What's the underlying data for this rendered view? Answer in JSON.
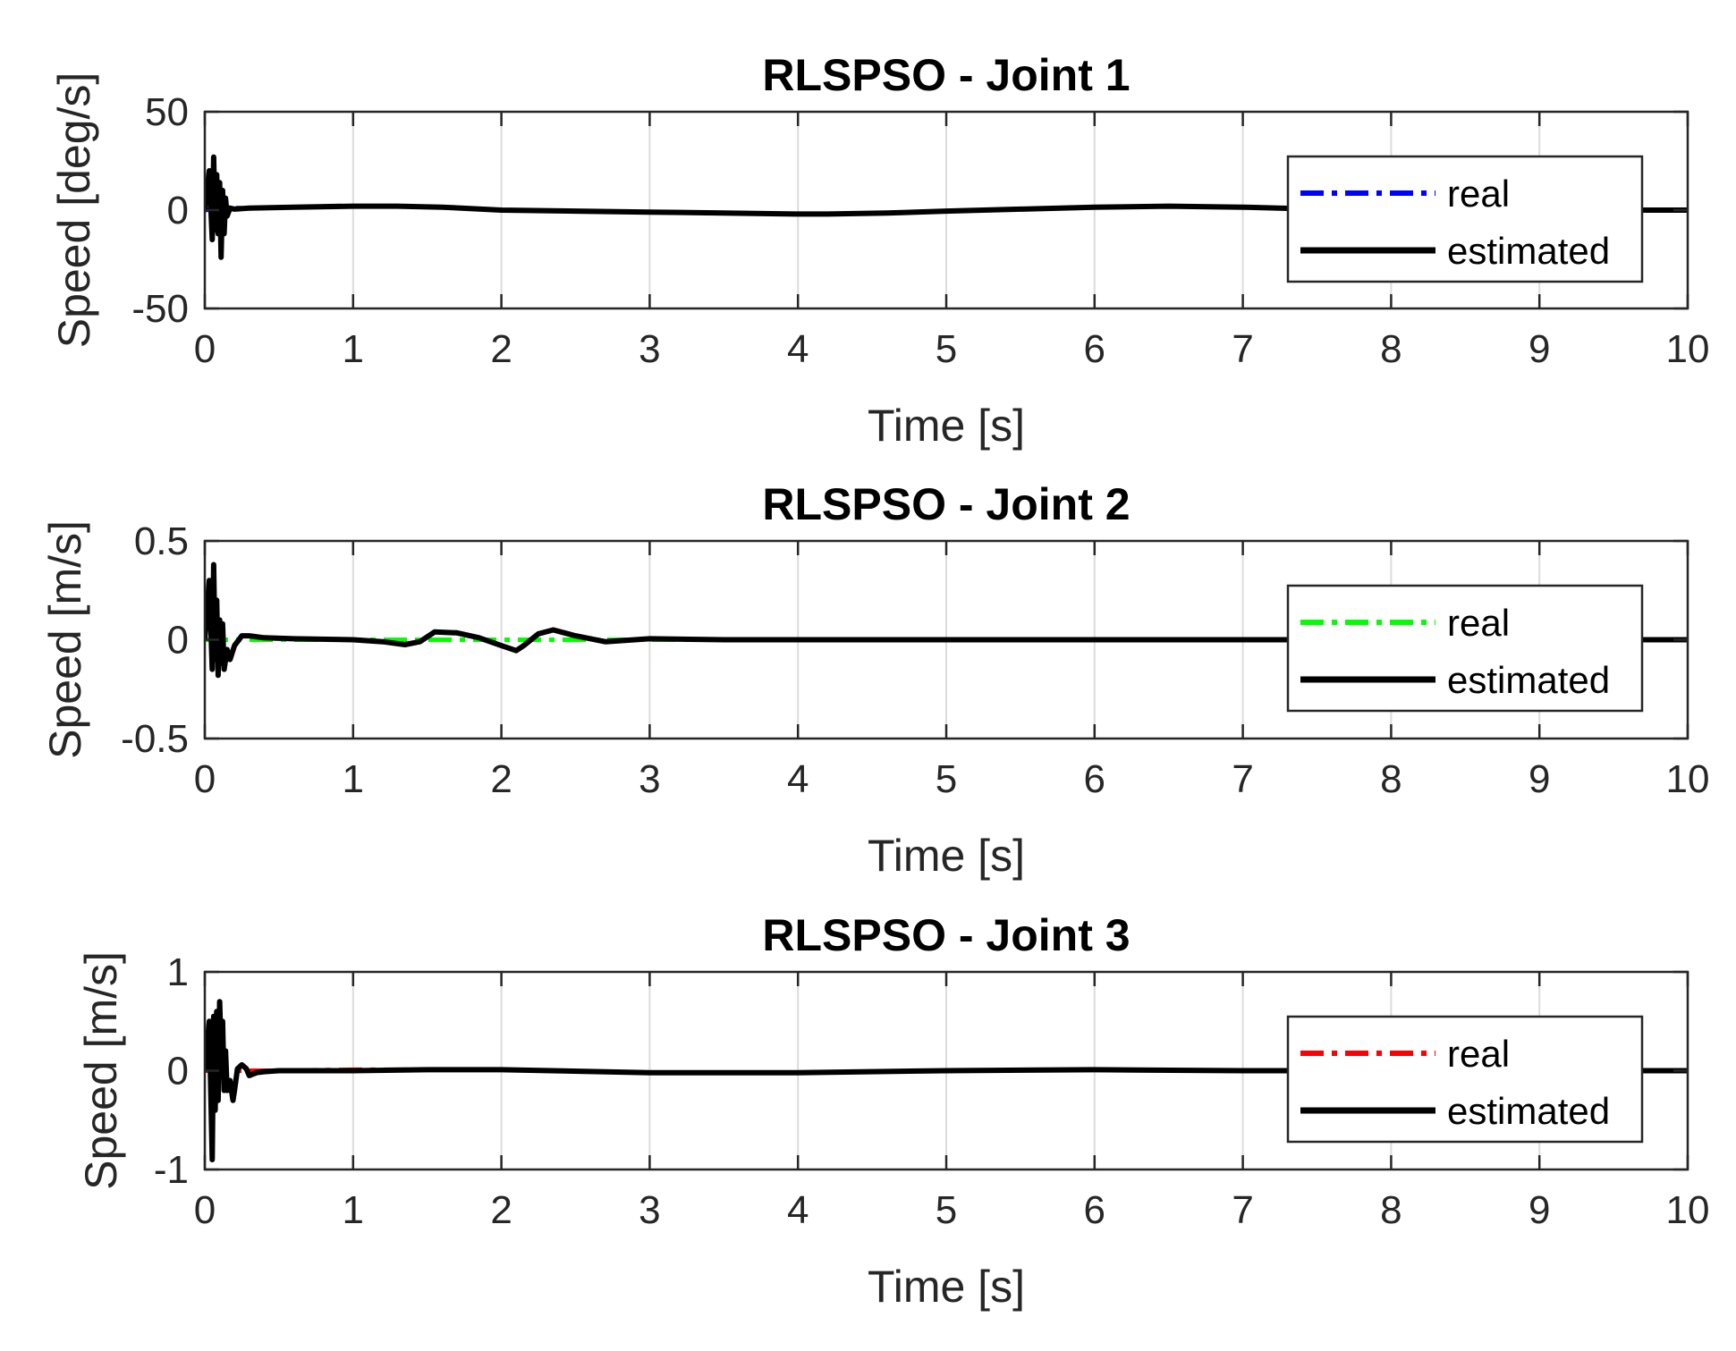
{
  "chart_data": [
    {
      "type": "line",
      "title": "RLSPSO - Joint 1",
      "xlabel": "Time [s]",
      "ylabel": "Speed [deg/s]",
      "xlim": [
        0,
        10
      ],
      "ylim": [
        -50,
        50
      ],
      "xticks": [
        "0",
        "1",
        "2",
        "3",
        "4",
        "5",
        "6",
        "7",
        "8",
        "9",
        "10"
      ],
      "yticks": [
        "-50",
        "0",
        "50"
      ],
      "grid": "x",
      "legend_position": "right",
      "series": [
        {
          "name": "real",
          "color": "#0000ff",
          "style": "dash-dot",
          "x": [
            0,
            0.05,
            0.1,
            0.15,
            0.3,
            0.6,
            1.0,
            1.3,
            1.6,
            2.0,
            2.5,
            3.0,
            3.5,
            4.0,
            4.2,
            4.6,
            5.0,
            5.5,
            6.0,
            6.5,
            7.0,
            7.5,
            8.0,
            8.5,
            9.0,
            9.5,
            10.0
          ],
          "y": [
            0,
            0.5,
            1,
            1,
            1,
            1.5,
            2,
            2,
            1.5,
            0,
            -0.5,
            -1,
            -1.5,
            -2,
            -2,
            -1.5,
            -0.5,
            0.5,
            1.5,
            2,
            1.5,
            0.5,
            0,
            0,
            0,
            0,
            0
          ]
        },
        {
          "name": "estimated",
          "color": "#000000",
          "style": "solid",
          "x": [
            0,
            0.03,
            0.05,
            0.06,
            0.07,
            0.08,
            0.09,
            0.1,
            0.11,
            0.12,
            0.13,
            0.14,
            0.15,
            0.17,
            0.2,
            0.3,
            0.6,
            1.0,
            1.3,
            1.6,
            2.0,
            2.5,
            3.0,
            3.5,
            4.0,
            4.2,
            4.6,
            5.0,
            5.5,
            6.0,
            6.5,
            7.0,
            7.5,
            8.0,
            8.5,
            9.0,
            9.5,
            10.0
          ],
          "y": [
            0,
            20,
            -15,
            27,
            -10,
            18,
            -12,
            14,
            -24,
            10,
            -12,
            6,
            -3,
            1,
            0.5,
            1,
            1.5,
            2,
            2,
            1.5,
            0,
            -0.5,
            -1,
            -1.5,
            -2,
            -2,
            -1.5,
            -0.5,
            0.5,
            1.5,
            2,
            1.5,
            0.5,
            0,
            0,
            0,
            0,
            0
          ]
        }
      ]
    },
    {
      "type": "line",
      "title": "RLSPSO - Joint 2",
      "xlabel": "Time [s]",
      "ylabel": "Speed [m/s]",
      "xlim": [
        0,
        10
      ],
      "ylim": [
        -0.5,
        0.5
      ],
      "xticks": [
        "0",
        "1",
        "2",
        "3",
        "4",
        "5",
        "6",
        "7",
        "8",
        "9",
        "10"
      ],
      "yticks": [
        "-0.5",
        "0",
        "0.5"
      ],
      "grid": "x",
      "legend_position": "right",
      "series": [
        {
          "name": "real",
          "color": "#00ff00",
          "style": "dash-dot",
          "x": [
            0,
            0.5,
            1,
            2,
            3,
            4,
            5,
            6,
            7,
            8,
            9,
            10
          ],
          "y": [
            0,
            0,
            0,
            0,
            0,
            0,
            0,
            0,
            0,
            0,
            0,
            0
          ]
        },
        {
          "name": "estimated",
          "color": "#000000",
          "style": "solid",
          "x": [
            0,
            0.03,
            0.05,
            0.06,
            0.07,
            0.08,
            0.09,
            0.1,
            0.11,
            0.12,
            0.13,
            0.15,
            0.17,
            0.2,
            0.25,
            0.3,
            0.4,
            0.6,
            1.0,
            1.2,
            1.35,
            1.45,
            1.55,
            1.7,
            1.85,
            2.0,
            2.1,
            2.15,
            2.25,
            2.35,
            2.5,
            2.7,
            3.0,
            3.5,
            4.0,
            5.0,
            6.0,
            7.0,
            8.0,
            9.0,
            10.0
          ],
          "y": [
            0,
            0.3,
            -0.15,
            0.38,
            -0.1,
            0.2,
            -0.18,
            0.1,
            -0.12,
            0.08,
            -0.15,
            -0.05,
            -0.1,
            -0.03,
            0.02,
            0.02,
            0.01,
            0.005,
            0,
            -0.01,
            -0.025,
            -0.01,
            0.04,
            0.035,
            0.01,
            -0.03,
            -0.055,
            -0.03,
            0.03,
            0.05,
            0.02,
            -0.01,
            0.005,
            0,
            0,
            0,
            0,
            0,
            0,
            0,
            0
          ]
        }
      ]
    },
    {
      "type": "line",
      "title": "RLSPSO - Joint 3",
      "xlabel": "Time [s]",
      "ylabel": "Speed [m/s]",
      "xlim": [
        0,
        10
      ],
      "ylim": [
        -1,
        1
      ],
      "xticks": [
        "0",
        "1",
        "2",
        "3",
        "4",
        "5",
        "6",
        "7",
        "8",
        "9",
        "10"
      ],
      "yticks": [
        "-1",
        "0",
        "1"
      ],
      "grid": "x",
      "legend_position": "right",
      "series": [
        {
          "name": "real",
          "color": "#ff0000",
          "style": "dash-dot",
          "x": [
            0,
            0.5,
            1,
            2,
            3,
            4,
            5,
            6,
            7,
            7.5,
            8,
            9,
            10
          ],
          "y": [
            0,
            0,
            0.01,
            0.01,
            -0.02,
            -0.02,
            0,
            0.01,
            0,
            0,
            0,
            0,
            0
          ]
        },
        {
          "name": "estimated",
          "color": "#000000",
          "style": "solid",
          "x": [
            0,
            0.03,
            0.05,
            0.06,
            0.07,
            0.08,
            0.09,
            0.1,
            0.11,
            0.12,
            0.13,
            0.14,
            0.15,
            0.17,
            0.19,
            0.2,
            0.22,
            0.25,
            0.28,
            0.3,
            0.35,
            0.4,
            0.5,
            1.0,
            1.5,
            2.0,
            3.0,
            4.0,
            5.0,
            6.0,
            7.0,
            7.5,
            8.0,
            9.0,
            10.0
          ],
          "y": [
            0,
            0.5,
            -0.9,
            0.55,
            -0.4,
            0.6,
            -0.3,
            0.7,
            0.2,
            0.5,
            -0.2,
            0.2,
            -0.2,
            -0.1,
            -0.3,
            -0.2,
            0.02,
            0.06,
            0.02,
            -0.05,
            -0.02,
            -0.01,
            0,
            0,
            0.01,
            0.01,
            -0.02,
            -0.02,
            0,
            0.01,
            0,
            0,
            0,
            0,
            0
          ]
        }
      ]
    }
  ]
}
